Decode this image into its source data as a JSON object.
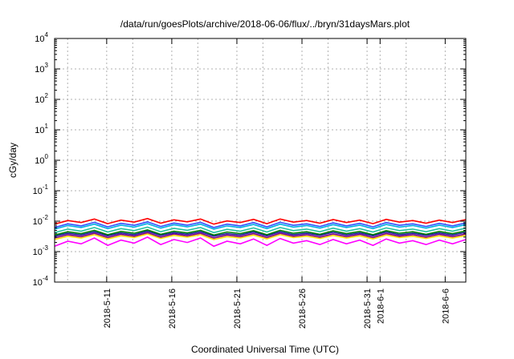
{
  "chart_data": {
    "type": "line",
    "title": "/data/run/goesPlots/archive/2018-06-06/flux/../bryn/31daysMars.plot",
    "xlabel": "Coordinated Universal Time (UTC)",
    "ylabel": "cGy/day",
    "yscale": "log",
    "ylim": [
      0.0001,
      10000
    ],
    "xlim": [
      "2018-05-07",
      "2018-06-07 14:00"
    ],
    "grid": true,
    "y_ticks": [
      {
        "base": "10",
        "exp": "-4"
      },
      {
        "base": "10",
        "exp": "-3"
      },
      {
        "base": "10",
        "exp": "-2"
      },
      {
        "base": "10",
        "exp": "-1"
      },
      {
        "base": "10",
        "exp": "0"
      },
      {
        "base": "10",
        "exp": "1"
      },
      {
        "base": "10",
        "exp": "2"
      },
      {
        "base": "10",
        "exp": "3"
      },
      {
        "base": "10",
        "exp": "4"
      }
    ],
    "x_ticks": [
      {
        "label": "2018-5-11",
        "date": "2018-05-11"
      },
      {
        "label": "2018-5-16",
        "date": "2018-05-16"
      },
      {
        "label": "2018-5-21",
        "date": "2018-05-21"
      },
      {
        "label": "2018-5-26",
        "date": "2018-05-26"
      },
      {
        "label": "2018-5-31",
        "date": "2018-05-31"
      },
      {
        "label": "2018-6-1",
        "date": "2018-06-01"
      },
      {
        "label": "2018-6-6",
        "date": "2018-06-06"
      }
    ],
    "series": [
      {
        "color": "#ff00ff",
        "values": [
          0.0015,
          0.0022,
          0.0018,
          0.0028,
          0.0016,
          0.0024,
          0.0019,
          0.003,
          0.0017,
          0.0025,
          0.002,
          0.0028,
          0.0015,
          0.0022,
          0.0018,
          0.0026,
          0.0016,
          0.0027,
          0.0019,
          0.0023,
          0.0017,
          0.0025,
          0.0018,
          0.0024,
          0.0016,
          0.0026,
          0.0019,
          0.0023,
          0.0017,
          0.0024,
          0.0018,
          0.0025
        ]
      },
      {
        "color": "#ffe000",
        "values": [
          0.0025,
          0.0032,
          0.0028,
          0.0036,
          0.0026,
          0.0033,
          0.0029,
          0.0038,
          0.0027,
          0.0034,
          0.003,
          0.0036,
          0.0025,
          0.0031,
          0.0028,
          0.0035,
          0.0026,
          0.0036,
          0.0029,
          0.0032,
          0.0027,
          0.0034,
          0.0028,
          0.0033,
          0.0026,
          0.0035,
          0.0029,
          0.0032,
          0.0027,
          0.0033,
          0.0028,
          0.0034
        ]
      },
      {
        "color": "#800080",
        "values": [
          0.0028,
          0.0036,
          0.0031,
          0.004,
          0.0029,
          0.0037,
          0.0032,
          0.0042,
          0.003,
          0.0038,
          0.0033,
          0.004,
          0.0028,
          0.0035,
          0.0031,
          0.0039,
          0.0029,
          0.004,
          0.0032,
          0.0036,
          0.003,
          0.0038,
          0.0031,
          0.0037,
          0.0029,
          0.0039,
          0.0032,
          0.0036,
          0.003,
          0.0037,
          0.0031,
          0.0038
        ]
      },
      {
        "color": "#1a1aa0",
        "values": [
          0.0032,
          0.004,
          0.0035,
          0.0045,
          0.0033,
          0.0041,
          0.0036,
          0.0047,
          0.0034,
          0.0042,
          0.0037,
          0.0045,
          0.0032,
          0.0039,
          0.0035,
          0.0044,
          0.0033,
          0.0045,
          0.0036,
          0.004,
          0.0034,
          0.0043,
          0.0035,
          0.0041,
          0.0033,
          0.0044,
          0.0036,
          0.004,
          0.0034,
          0.0041,
          0.0035,
          0.0043
        ]
      },
      {
        "color": "#008000",
        "values": [
          0.0035,
          0.0045,
          0.0039,
          0.005,
          0.0036,
          0.0046,
          0.004,
          0.0052,
          0.0037,
          0.0047,
          0.0041,
          0.005,
          0.0035,
          0.0044,
          0.0039,
          0.0049,
          0.0036,
          0.005,
          0.004,
          0.0045,
          0.0037,
          0.0048,
          0.0039,
          0.0046,
          0.0036,
          0.0049,
          0.004,
          0.0045,
          0.0037,
          0.0046,
          0.0039,
          0.0048
        ]
      },
      {
        "color": "#20c0a0",
        "values": [
          0.0042,
          0.0055,
          0.0047,
          0.0062,
          0.0044,
          0.0057,
          0.0049,
          0.0064,
          0.0045,
          0.0058,
          0.005,
          0.0062,
          0.0042,
          0.0054,
          0.0047,
          0.006,
          0.0044,
          0.0062,
          0.0049,
          0.0055,
          0.0045,
          0.0059,
          0.0047,
          0.0057,
          0.0044,
          0.006,
          0.0049,
          0.0055,
          0.0045,
          0.0057,
          0.0047,
          0.0059
        ]
      },
      {
        "color": "#00b0e0",
        "values": [
          0.0055,
          0.0072,
          0.0062,
          0.008,
          0.0057,
          0.0074,
          0.0064,
          0.0083,
          0.0059,
          0.0076,
          0.0065,
          0.008,
          0.0055,
          0.007,
          0.0062,
          0.0078,
          0.0057,
          0.008,
          0.0064,
          0.0072,
          0.0059,
          0.0077,
          0.0062,
          0.0074,
          0.0057,
          0.0078,
          0.0064,
          0.0072,
          0.0059,
          0.0074,
          0.0062,
          0.0077
        ]
      },
      {
        "color": "#3050ff",
        "values": [
          0.0062,
          0.0082,
          0.007,
          0.0092,
          0.0065,
          0.0085,
          0.0073,
          0.0095,
          0.0067,
          0.0087,
          0.0074,
          0.0092,
          0.0062,
          0.008,
          0.007,
          0.009,
          0.0065,
          0.0092,
          0.0073,
          0.0082,
          0.0067,
          0.0088,
          0.007,
          0.0085,
          0.0065,
          0.009,
          0.0073,
          0.0082,
          0.0067,
          0.0085,
          0.007,
          0.0088
        ]
      },
      {
        "color": "#ff0000",
        "values": [
          0.008,
          0.0105,
          0.009,
          0.0118,
          0.0083,
          0.0108,
          0.0093,
          0.0122,
          0.0086,
          0.0111,
          0.0095,
          0.0118,
          0.008,
          0.0102,
          0.009,
          0.0115,
          0.0083,
          0.0118,
          0.0093,
          0.0105,
          0.0086,
          0.0113,
          0.009,
          0.0108,
          0.0083,
          0.0115,
          0.0093,
          0.0105,
          0.0086,
          0.0108,
          0.009,
          0.0113
        ]
      }
    ]
  }
}
